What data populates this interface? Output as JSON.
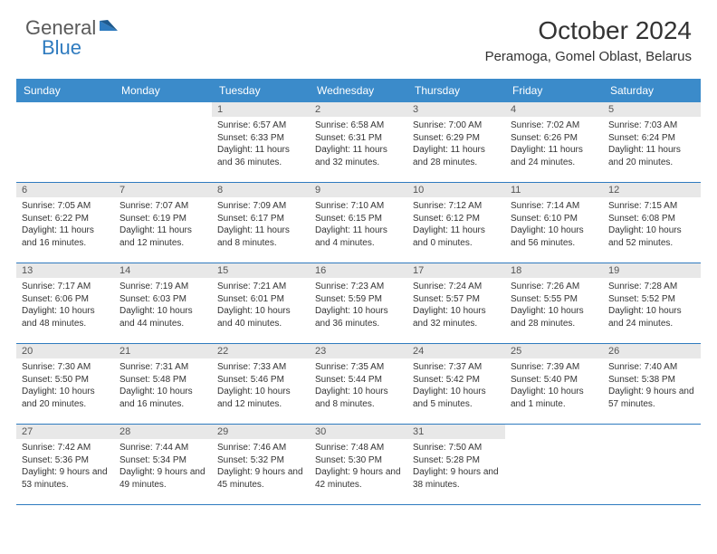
{
  "logo": {
    "text_general": "General",
    "text_blue": "Blue",
    "accent_color": "#2f7bbf",
    "gray_color": "#5a5a5a"
  },
  "title": "October 2024",
  "location": "Peramoga, Gomel Oblast, Belarus",
  "day_headers": [
    "Sunday",
    "Monday",
    "Tuesday",
    "Wednesday",
    "Thursday",
    "Friday",
    "Saturday"
  ],
  "header_bg": "#3b8bca",
  "header_fg": "#ffffff",
  "daynum_bg": "#e8e8e8",
  "week_border": "#2f7bbf",
  "weeks": [
    [
      null,
      null,
      {
        "num": "1",
        "sunrise": "Sunrise: 6:57 AM",
        "sunset": "Sunset: 6:33 PM",
        "daylight": "Daylight: 11 hours and 36 minutes."
      },
      {
        "num": "2",
        "sunrise": "Sunrise: 6:58 AM",
        "sunset": "Sunset: 6:31 PM",
        "daylight": "Daylight: 11 hours and 32 minutes."
      },
      {
        "num": "3",
        "sunrise": "Sunrise: 7:00 AM",
        "sunset": "Sunset: 6:29 PM",
        "daylight": "Daylight: 11 hours and 28 minutes."
      },
      {
        "num": "4",
        "sunrise": "Sunrise: 7:02 AM",
        "sunset": "Sunset: 6:26 PM",
        "daylight": "Daylight: 11 hours and 24 minutes."
      },
      {
        "num": "5",
        "sunrise": "Sunrise: 7:03 AM",
        "sunset": "Sunset: 6:24 PM",
        "daylight": "Daylight: 11 hours and 20 minutes."
      }
    ],
    [
      {
        "num": "6",
        "sunrise": "Sunrise: 7:05 AM",
        "sunset": "Sunset: 6:22 PM",
        "daylight": "Daylight: 11 hours and 16 minutes."
      },
      {
        "num": "7",
        "sunrise": "Sunrise: 7:07 AM",
        "sunset": "Sunset: 6:19 PM",
        "daylight": "Daylight: 11 hours and 12 minutes."
      },
      {
        "num": "8",
        "sunrise": "Sunrise: 7:09 AM",
        "sunset": "Sunset: 6:17 PM",
        "daylight": "Daylight: 11 hours and 8 minutes."
      },
      {
        "num": "9",
        "sunrise": "Sunrise: 7:10 AM",
        "sunset": "Sunset: 6:15 PM",
        "daylight": "Daylight: 11 hours and 4 minutes."
      },
      {
        "num": "10",
        "sunrise": "Sunrise: 7:12 AM",
        "sunset": "Sunset: 6:12 PM",
        "daylight": "Daylight: 11 hours and 0 minutes."
      },
      {
        "num": "11",
        "sunrise": "Sunrise: 7:14 AM",
        "sunset": "Sunset: 6:10 PM",
        "daylight": "Daylight: 10 hours and 56 minutes."
      },
      {
        "num": "12",
        "sunrise": "Sunrise: 7:15 AM",
        "sunset": "Sunset: 6:08 PM",
        "daylight": "Daylight: 10 hours and 52 minutes."
      }
    ],
    [
      {
        "num": "13",
        "sunrise": "Sunrise: 7:17 AM",
        "sunset": "Sunset: 6:06 PM",
        "daylight": "Daylight: 10 hours and 48 minutes."
      },
      {
        "num": "14",
        "sunrise": "Sunrise: 7:19 AM",
        "sunset": "Sunset: 6:03 PM",
        "daylight": "Daylight: 10 hours and 44 minutes."
      },
      {
        "num": "15",
        "sunrise": "Sunrise: 7:21 AM",
        "sunset": "Sunset: 6:01 PM",
        "daylight": "Daylight: 10 hours and 40 minutes."
      },
      {
        "num": "16",
        "sunrise": "Sunrise: 7:23 AM",
        "sunset": "Sunset: 5:59 PM",
        "daylight": "Daylight: 10 hours and 36 minutes."
      },
      {
        "num": "17",
        "sunrise": "Sunrise: 7:24 AM",
        "sunset": "Sunset: 5:57 PM",
        "daylight": "Daylight: 10 hours and 32 minutes."
      },
      {
        "num": "18",
        "sunrise": "Sunrise: 7:26 AM",
        "sunset": "Sunset: 5:55 PM",
        "daylight": "Daylight: 10 hours and 28 minutes."
      },
      {
        "num": "19",
        "sunrise": "Sunrise: 7:28 AM",
        "sunset": "Sunset: 5:52 PM",
        "daylight": "Daylight: 10 hours and 24 minutes."
      }
    ],
    [
      {
        "num": "20",
        "sunrise": "Sunrise: 7:30 AM",
        "sunset": "Sunset: 5:50 PM",
        "daylight": "Daylight: 10 hours and 20 minutes."
      },
      {
        "num": "21",
        "sunrise": "Sunrise: 7:31 AM",
        "sunset": "Sunset: 5:48 PM",
        "daylight": "Daylight: 10 hours and 16 minutes."
      },
      {
        "num": "22",
        "sunrise": "Sunrise: 7:33 AM",
        "sunset": "Sunset: 5:46 PM",
        "daylight": "Daylight: 10 hours and 12 minutes."
      },
      {
        "num": "23",
        "sunrise": "Sunrise: 7:35 AM",
        "sunset": "Sunset: 5:44 PM",
        "daylight": "Daylight: 10 hours and 8 minutes."
      },
      {
        "num": "24",
        "sunrise": "Sunrise: 7:37 AM",
        "sunset": "Sunset: 5:42 PM",
        "daylight": "Daylight: 10 hours and 5 minutes."
      },
      {
        "num": "25",
        "sunrise": "Sunrise: 7:39 AM",
        "sunset": "Sunset: 5:40 PM",
        "daylight": "Daylight: 10 hours and 1 minute."
      },
      {
        "num": "26",
        "sunrise": "Sunrise: 7:40 AM",
        "sunset": "Sunset: 5:38 PM",
        "daylight": "Daylight: 9 hours and 57 minutes."
      }
    ],
    [
      {
        "num": "27",
        "sunrise": "Sunrise: 7:42 AM",
        "sunset": "Sunset: 5:36 PM",
        "daylight": "Daylight: 9 hours and 53 minutes."
      },
      {
        "num": "28",
        "sunrise": "Sunrise: 7:44 AM",
        "sunset": "Sunset: 5:34 PM",
        "daylight": "Daylight: 9 hours and 49 minutes."
      },
      {
        "num": "29",
        "sunrise": "Sunrise: 7:46 AM",
        "sunset": "Sunset: 5:32 PM",
        "daylight": "Daylight: 9 hours and 45 minutes."
      },
      {
        "num": "30",
        "sunrise": "Sunrise: 7:48 AM",
        "sunset": "Sunset: 5:30 PM",
        "daylight": "Daylight: 9 hours and 42 minutes."
      },
      {
        "num": "31",
        "sunrise": "Sunrise: 7:50 AM",
        "sunset": "Sunset: 5:28 PM",
        "daylight": "Daylight: 9 hours and 38 minutes."
      },
      null,
      null
    ]
  ]
}
